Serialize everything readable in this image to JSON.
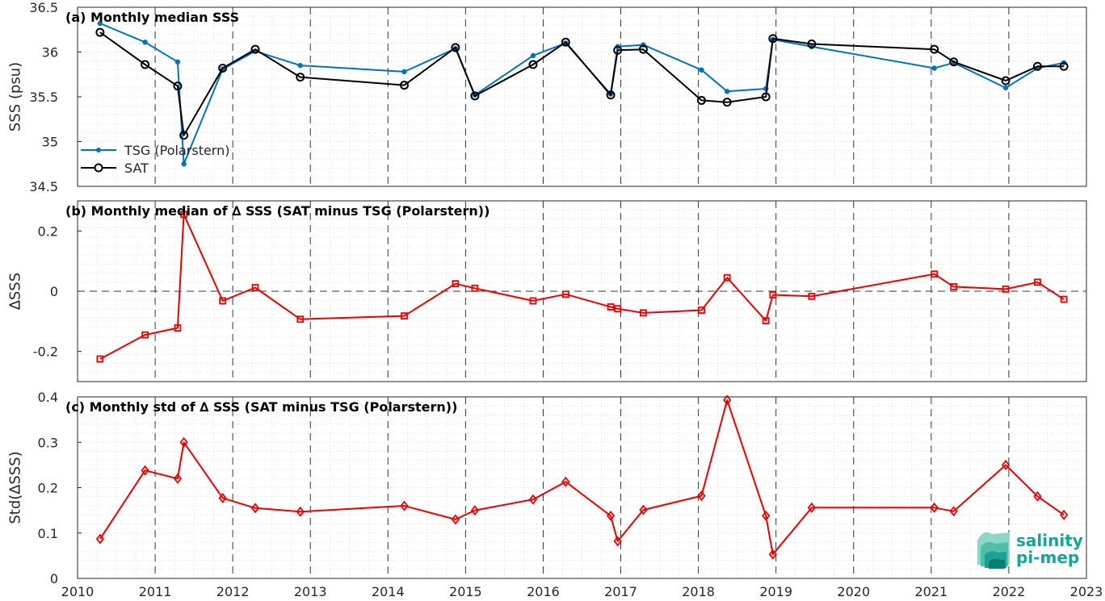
{
  "colors": {
    "tsg": "#0072BD",
    "sat": "#000000",
    "delta": "#E60000",
    "logo": "#1aa394"
  },
  "logo": {
    "line1": "salinity",
    "line2": "pi-mep"
  },
  "chart_data": [
    {
      "type": "line",
      "title": "(a) Monthly median SSS",
      "ylabel": "SSS (psu)",
      "xlim": [
        2010,
        2023
      ],
      "ylim": [
        34.5,
        36.5
      ],
      "xticks": [
        "2010",
        "2011",
        "2012",
        "2013",
        "2014",
        "2015",
        "2016",
        "2017",
        "2018",
        "2019",
        "2020",
        "2021",
        "2022",
        "2023"
      ],
      "yticks": [
        "34.5",
        "35",
        "35.5",
        "36",
        "36.5"
      ],
      "grid": true,
      "legend_position": "lower-left",
      "series": [
        {
          "name": "TSG (Polarstern)",
          "marker": "dot",
          "x": [
            2010.29,
            2010.87,
            2011.29,
            2011.37,
            2011.87,
            2012.29,
            2012.87,
            2014.21,
            2014.87,
            2015.12,
            2015.87,
            2016.29,
            2016.87,
            2016.96,
            2017.29,
            2018.04,
            2018.37,
            2018.87,
            2018.96,
            2019.46,
            2021.04,
            2021.29,
            2021.96,
            2022.37,
            2022.71
          ],
          "values": [
            36.32,
            36.11,
            35.89,
            34.75,
            35.81,
            36.01,
            35.85,
            35.78,
            36.04,
            35.52,
            35.96,
            36.1,
            35.53,
            36.06,
            36.08,
            35.8,
            35.56,
            35.59,
            36.14,
            36.06,
            35.82,
            35.88,
            35.6,
            35.82,
            35.88
          ]
        },
        {
          "name": "SAT",
          "marker": "circle",
          "x": [
            2010.29,
            2010.87,
            2011.29,
            2011.37,
            2011.87,
            2012.29,
            2012.87,
            2014.21,
            2014.87,
            2015.12,
            2015.87,
            2016.29,
            2016.87,
            2016.96,
            2017.29,
            2018.04,
            2018.37,
            2018.87,
            2018.96,
            2019.46,
            2021.04,
            2021.29,
            2021.96,
            2022.37,
            2022.71
          ],
          "values": [
            36.22,
            35.86,
            35.62,
            35.07,
            35.82,
            36.03,
            35.72,
            35.63,
            36.05,
            35.51,
            35.86,
            36.11,
            35.52,
            36.02,
            36.03,
            35.46,
            35.44,
            35.5,
            36.15,
            36.09,
            36.03,
            35.89,
            35.68,
            35.84,
            35.84
          ]
        }
      ]
    },
    {
      "type": "line",
      "title": "(b) Monthly median of ∆ SSS (SAT minus TSG (Polarstern))",
      "ylabel": "∆SSS",
      "xlim": [
        2010,
        2023
      ],
      "ylim": [
        -0.3,
        0.3
      ],
      "xticks": [
        "2010",
        "2011",
        "2012",
        "2013",
        "2014",
        "2015",
        "2016",
        "2017",
        "2018",
        "2019",
        "2020",
        "2021",
        "2022",
        "2023"
      ],
      "yticks": [
        "-0.2",
        "0",
        "0.2"
      ],
      "ytick_values": [
        -0.2,
        0,
        0.2
      ],
      "reference_line": 0,
      "grid": true,
      "series": [
        {
          "marker": "square",
          "x": [
            2010.29,
            2010.87,
            2011.29,
            2011.37,
            2011.87,
            2012.29,
            2012.87,
            2014.21,
            2014.87,
            2015.12,
            2015.87,
            2016.29,
            2016.87,
            2016.96,
            2017.29,
            2018.04,
            2018.37,
            2018.87,
            2018.96,
            2019.46,
            2021.04,
            2021.29,
            2021.96,
            2022.37,
            2022.71
          ],
          "values": [
            -0.225,
            -0.145,
            -0.122,
            0.255,
            -0.032,
            0.012,
            -0.093,
            -0.082,
            0.025,
            0.01,
            -0.032,
            -0.01,
            -0.052,
            -0.058,
            -0.072,
            -0.063,
            0.045,
            -0.098,
            -0.012,
            -0.017,
            0.057,
            0.015,
            0.007,
            0.03,
            -0.027
          ]
        }
      ]
    },
    {
      "type": "line",
      "title": "(c) Monthly std of ∆ SSS (SAT minus TSG (Polarstern))",
      "ylabel": "Std(∆SSS)",
      "xlim": [
        2010,
        2023
      ],
      "ylim": [
        0,
        0.4
      ],
      "xticks": [
        "2010",
        "2011",
        "2012",
        "2013",
        "2014",
        "2015",
        "2016",
        "2017",
        "2018",
        "2019",
        "2020",
        "2021",
        "2022",
        "2023"
      ],
      "yticks": [
        "0",
        "0.1",
        "0.2",
        "0.3",
        "0.4"
      ],
      "grid": true,
      "series": [
        {
          "marker": "diamond",
          "x": [
            2010.29,
            2010.87,
            2011.29,
            2011.37,
            2011.87,
            2012.29,
            2012.87,
            2014.21,
            2014.87,
            2015.12,
            2015.87,
            2016.29,
            2016.87,
            2016.96,
            2017.29,
            2018.04,
            2018.37,
            2018.87,
            2018.96,
            2019.46,
            2021.04,
            2021.29,
            2021.96,
            2022.37,
            2022.71
          ],
          "values": [
            0.087,
            0.238,
            0.22,
            0.3,
            0.177,
            0.155,
            0.147,
            0.16,
            0.13,
            0.15,
            0.174,
            0.213,
            0.138,
            0.082,
            0.151,
            0.182,
            0.393,
            0.138,
            0.053,
            0.156,
            0.156,
            0.148,
            0.25,
            0.181,
            0.14
          ]
        }
      ]
    }
  ]
}
